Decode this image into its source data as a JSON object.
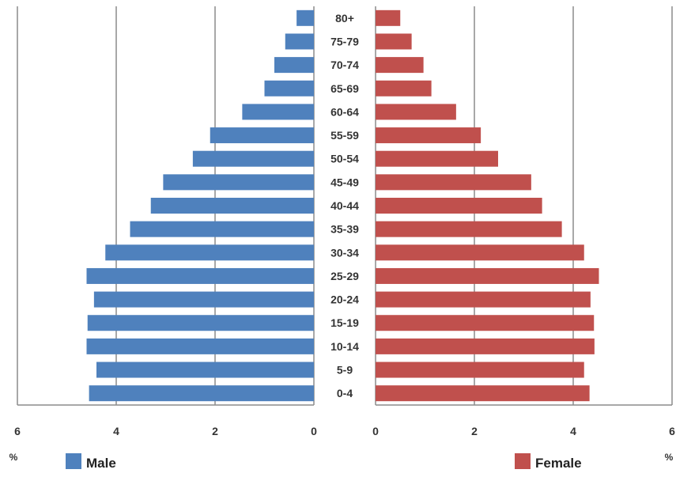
{
  "chart_data": {
    "type": "bar",
    "orientation": "horizontal-population-pyramid",
    "categories": [
      "0-4",
      "5-9",
      "10-14",
      "15-19",
      "20-24",
      "25-29",
      "30-34",
      "35-39",
      "40-44",
      "45-49",
      "50-54",
      "55-59",
      "60-64",
      "65-69",
      "70-74",
      "75-79",
      "80+"
    ],
    "series": [
      {
        "name": "Male",
        "color": "#4f81bd",
        "values": [
          4.55,
          4.4,
          4.6,
          4.58,
          4.45,
          4.6,
          4.22,
          3.72,
          3.3,
          3.05,
          2.45,
          2.1,
          1.45,
          1.0,
          0.8,
          0.58,
          0.35
        ]
      },
      {
        "name": "Female",
        "color": "#c0504d",
        "values": [
          4.33,
          4.22,
          4.43,
          4.42,
          4.35,
          4.52,
          4.22,
          3.77,
          3.37,
          3.15,
          2.48,
          2.13,
          1.63,
          1.13,
          0.97,
          0.73,
          0.5
        ]
      }
    ],
    "xlim": [
      0,
      6
    ],
    "xticks": [
      "6",
      "4",
      "2",
      "0",
      "0",
      "2",
      "4",
      "6"
    ],
    "unit_label": "%",
    "grid": true,
    "legend": [
      "Male",
      "Female"
    ],
    "legend_position": "bottom"
  }
}
